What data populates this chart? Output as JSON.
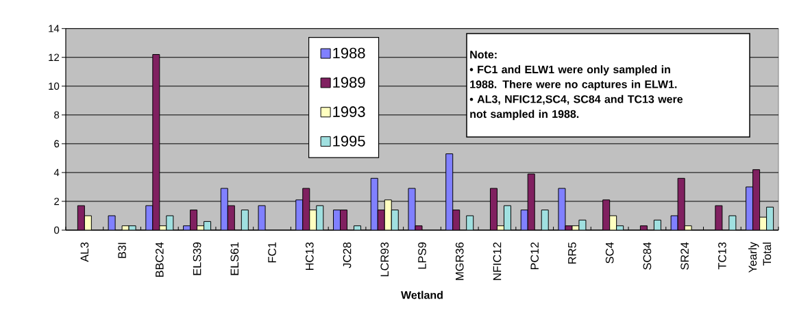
{
  "chart_data": {
    "type": "bar",
    "categories": [
      "AL3",
      "B3I",
      "BBC24",
      "ELS39",
      "ELS61",
      "FC1",
      "HC13",
      "JC28",
      "LCR93",
      "LPS9",
      "MGR36",
      "NFIC12",
      "PC12",
      "RR5",
      "SC4",
      "SC84",
      "SR24",
      "TC13",
      "Yearly Total"
    ],
    "series": [
      {
        "name": "1988",
        "color": "#8080ff",
        "values": [
          null,
          1.0,
          1.7,
          0.3,
          2.9,
          1.7,
          2.1,
          1.4,
          3.6,
          2.9,
          5.3,
          null,
          1.4,
          2.9,
          null,
          null,
          1.0,
          null,
          3.0
        ]
      },
      {
        "name": "1989",
        "color": "#802060",
        "values": [
          1.7,
          null,
          12.2,
          1.4,
          1.7,
          null,
          2.9,
          1.4,
          1.4,
          0.3,
          1.4,
          2.9,
          3.9,
          0.3,
          2.1,
          0.3,
          3.6,
          1.7,
          4.2
        ]
      },
      {
        "name": "1993",
        "color": "#ffffc0",
        "values": [
          1.0,
          0.3,
          0.3,
          0.3,
          null,
          null,
          1.4,
          null,
          2.1,
          null,
          null,
          0.3,
          null,
          0.3,
          1.0,
          null,
          0.3,
          null,
          0.9
        ]
      },
      {
        "name": "1995",
        "color": "#a0e0e0",
        "values": [
          null,
          0.3,
          1.0,
          0.6,
          1.4,
          null,
          1.7,
          0.3,
          1.4,
          null,
          1.0,
          1.7,
          1.4,
          0.7,
          0.3,
          0.7,
          null,
          1.0,
          1.6
        ]
      }
    ],
    "xlabel": "Wetland",
    "ylim": [
      0,
      14
    ],
    "yticks": [
      0,
      2,
      4,
      6,
      8,
      10,
      12,
      14
    ],
    "grid": "y",
    "legend": "top",
    "annotations": [
      "Note:",
      "• FC1 and ELW1 were only sampled in 1988.  There were no captures in ELW1.",
      "• AL3, NFIC12,SC4, SC84 and TC13 were not sampled in 1988."
    ]
  }
}
